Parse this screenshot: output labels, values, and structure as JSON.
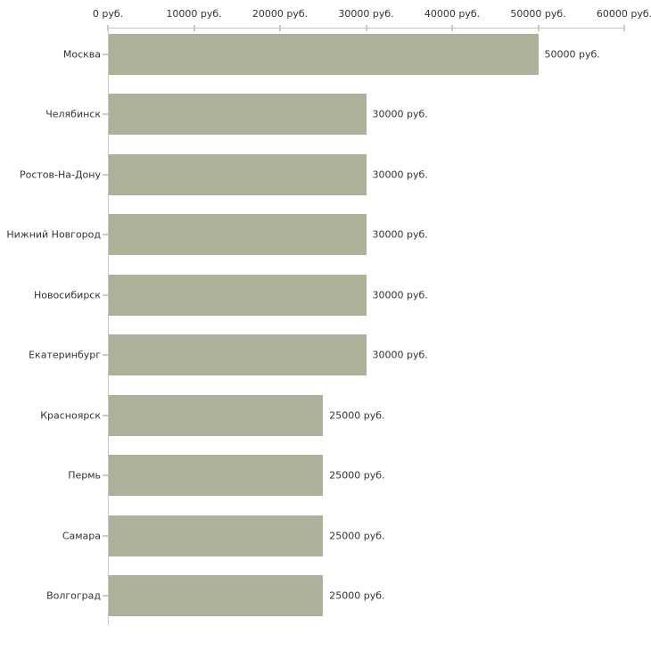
{
  "chart_data": {
    "type": "bar",
    "orientation": "horizontal",
    "title": "",
    "xlabel": "",
    "ylabel": "",
    "unit": "руб.",
    "categories": [
      "Москва",
      "Челябинск",
      "Ростов-На-Дону",
      "Нижний Новгород",
      "Новосибирск",
      "Екатеринбург",
      "Красноярск",
      "Пермь",
      "Самара",
      "Волгоград"
    ],
    "values": [
      50000,
      30000,
      30000,
      30000,
      30000,
      30000,
      25000,
      25000,
      25000,
      25000
    ],
    "value_labels": [
      "50000 руб.",
      "30000 руб.",
      "30000 руб.",
      "30000 руб.",
      "30000 руб.",
      "30000 руб.",
      "25000 руб.",
      "25000 руб.",
      "25000 руб.",
      "25000 руб."
    ],
    "xlim": [
      0,
      60000
    ],
    "x_ticks": [
      0,
      10000,
      20000,
      30000,
      40000,
      50000,
      60000
    ],
    "x_tick_labels": [
      "0 руб.",
      "10000 руб.",
      "20000 руб.",
      "30000 руб.",
      "40000 руб.",
      "50000 руб.",
      "60000 руб."
    ],
    "grid": false,
    "legend": false,
    "axis_position": "top",
    "colors": {
      "bar": "#acb299",
      "axis_line": "#c6c6c6",
      "tick": "#cdceb4",
      "text": "#333333",
      "background": "#ffffff"
    }
  }
}
